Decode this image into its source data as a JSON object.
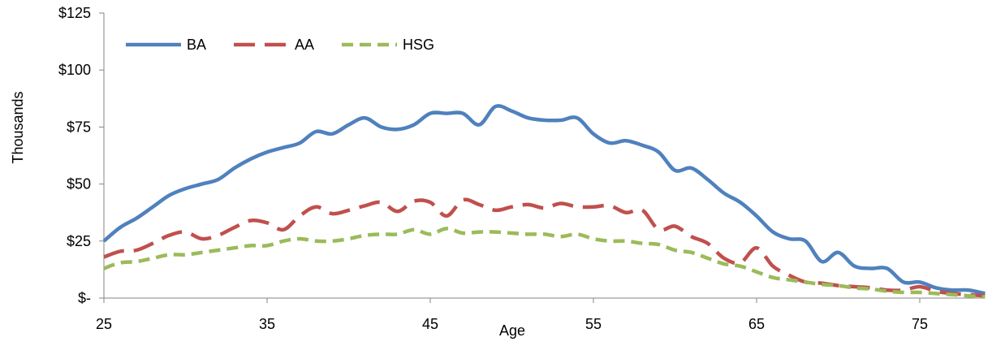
{
  "chart_data": {
    "type": "line",
    "title": "",
    "xlabel": "Age",
    "ylabel": "Thousands",
    "xlim": [
      25,
      79
    ],
    "ylim": [
      0,
      125
    ],
    "x_ticks": [
      25,
      35,
      45,
      55,
      65,
      75
    ],
    "x_tick_labels": [
      "25",
      "35",
      "45",
      "55",
      "65",
      "75"
    ],
    "y_ticks": [
      0,
      25,
      50,
      75,
      100,
      125
    ],
    "y_tick_labels": [
      "$-",
      "$25",
      "$50",
      "$75",
      "$100",
      "$125"
    ],
    "grid": false,
    "legend_position": "top-left",
    "x": [
      25,
      26,
      27,
      28,
      29,
      30,
      31,
      32,
      33,
      34,
      35,
      36,
      37,
      38,
      39,
      40,
      41,
      42,
      43,
      44,
      45,
      46,
      47,
      48,
      49,
      50,
      51,
      52,
      53,
      54,
      55,
      56,
      57,
      58,
      59,
      60,
      61,
      62,
      63,
      64,
      65,
      66,
      67,
      68,
      69,
      70,
      71,
      72,
      73,
      74,
      75,
      76,
      77,
      78,
      79
    ],
    "series": [
      {
        "name": "BA",
        "color": "#4F81BD",
        "dash": "solid",
        "values": [
          25,
          31,
          35,
          40,
          45,
          48,
          50,
          52,
          57,
          61,
          64,
          66,
          68,
          73,
          72,
          76,
          79,
          75,
          74,
          76,
          81,
          81,
          81,
          76,
          84,
          82,
          79,
          78,
          78,
          79,
          72,
          68,
          69,
          67,
          64,
          56,
          57,
          52,
          46,
          42,
          36,
          29,
          26,
          25,
          16,
          20,
          14,
          13,
          13,
          7,
          7,
          4.5,
          3.5,
          3.5,
          2
        ]
      },
      {
        "name": "AA",
        "color": "#C0504D",
        "dash": "long-dash",
        "values": [
          18,
          20.5,
          21,
          24,
          27.5,
          29,
          26,
          27.5,
          31,
          34,
          33,
          30,
          36,
          40,
          37,
          38.5,
          40.5,
          42,
          38,
          42.5,
          42,
          36,
          43,
          41,
          38.5,
          40,
          41,
          39.5,
          41.5,
          40,
          40,
          40.5,
          37.5,
          38.5,
          30,
          31.5,
          27,
          24,
          17.5,
          15.5,
          22,
          14,
          10,
          7,
          6.5,
          5.5,
          5,
          4.5,
          3.5,
          3.5,
          5,
          3,
          2,
          1.5,
          1
        ]
      },
      {
        "name": "HSG",
        "color": "#9BBB59",
        "dash": "short-dash",
        "values": [
          13,
          15.5,
          16,
          17.5,
          19,
          19,
          20,
          21,
          22,
          23,
          23,
          25,
          26,
          25,
          25,
          26,
          27.5,
          28,
          28,
          30,
          28,
          30.5,
          28.5,
          29,
          29,
          28.5,
          28,
          28,
          27,
          28,
          26,
          25,
          25,
          24,
          23.5,
          21,
          20,
          17.5,
          15,
          14,
          11.5,
          9,
          8,
          7,
          6,
          5.5,
          4.5,
          4,
          3,
          2.5,
          2.5,
          2,
          1.5,
          1,
          0.5
        ]
      }
    ]
  }
}
